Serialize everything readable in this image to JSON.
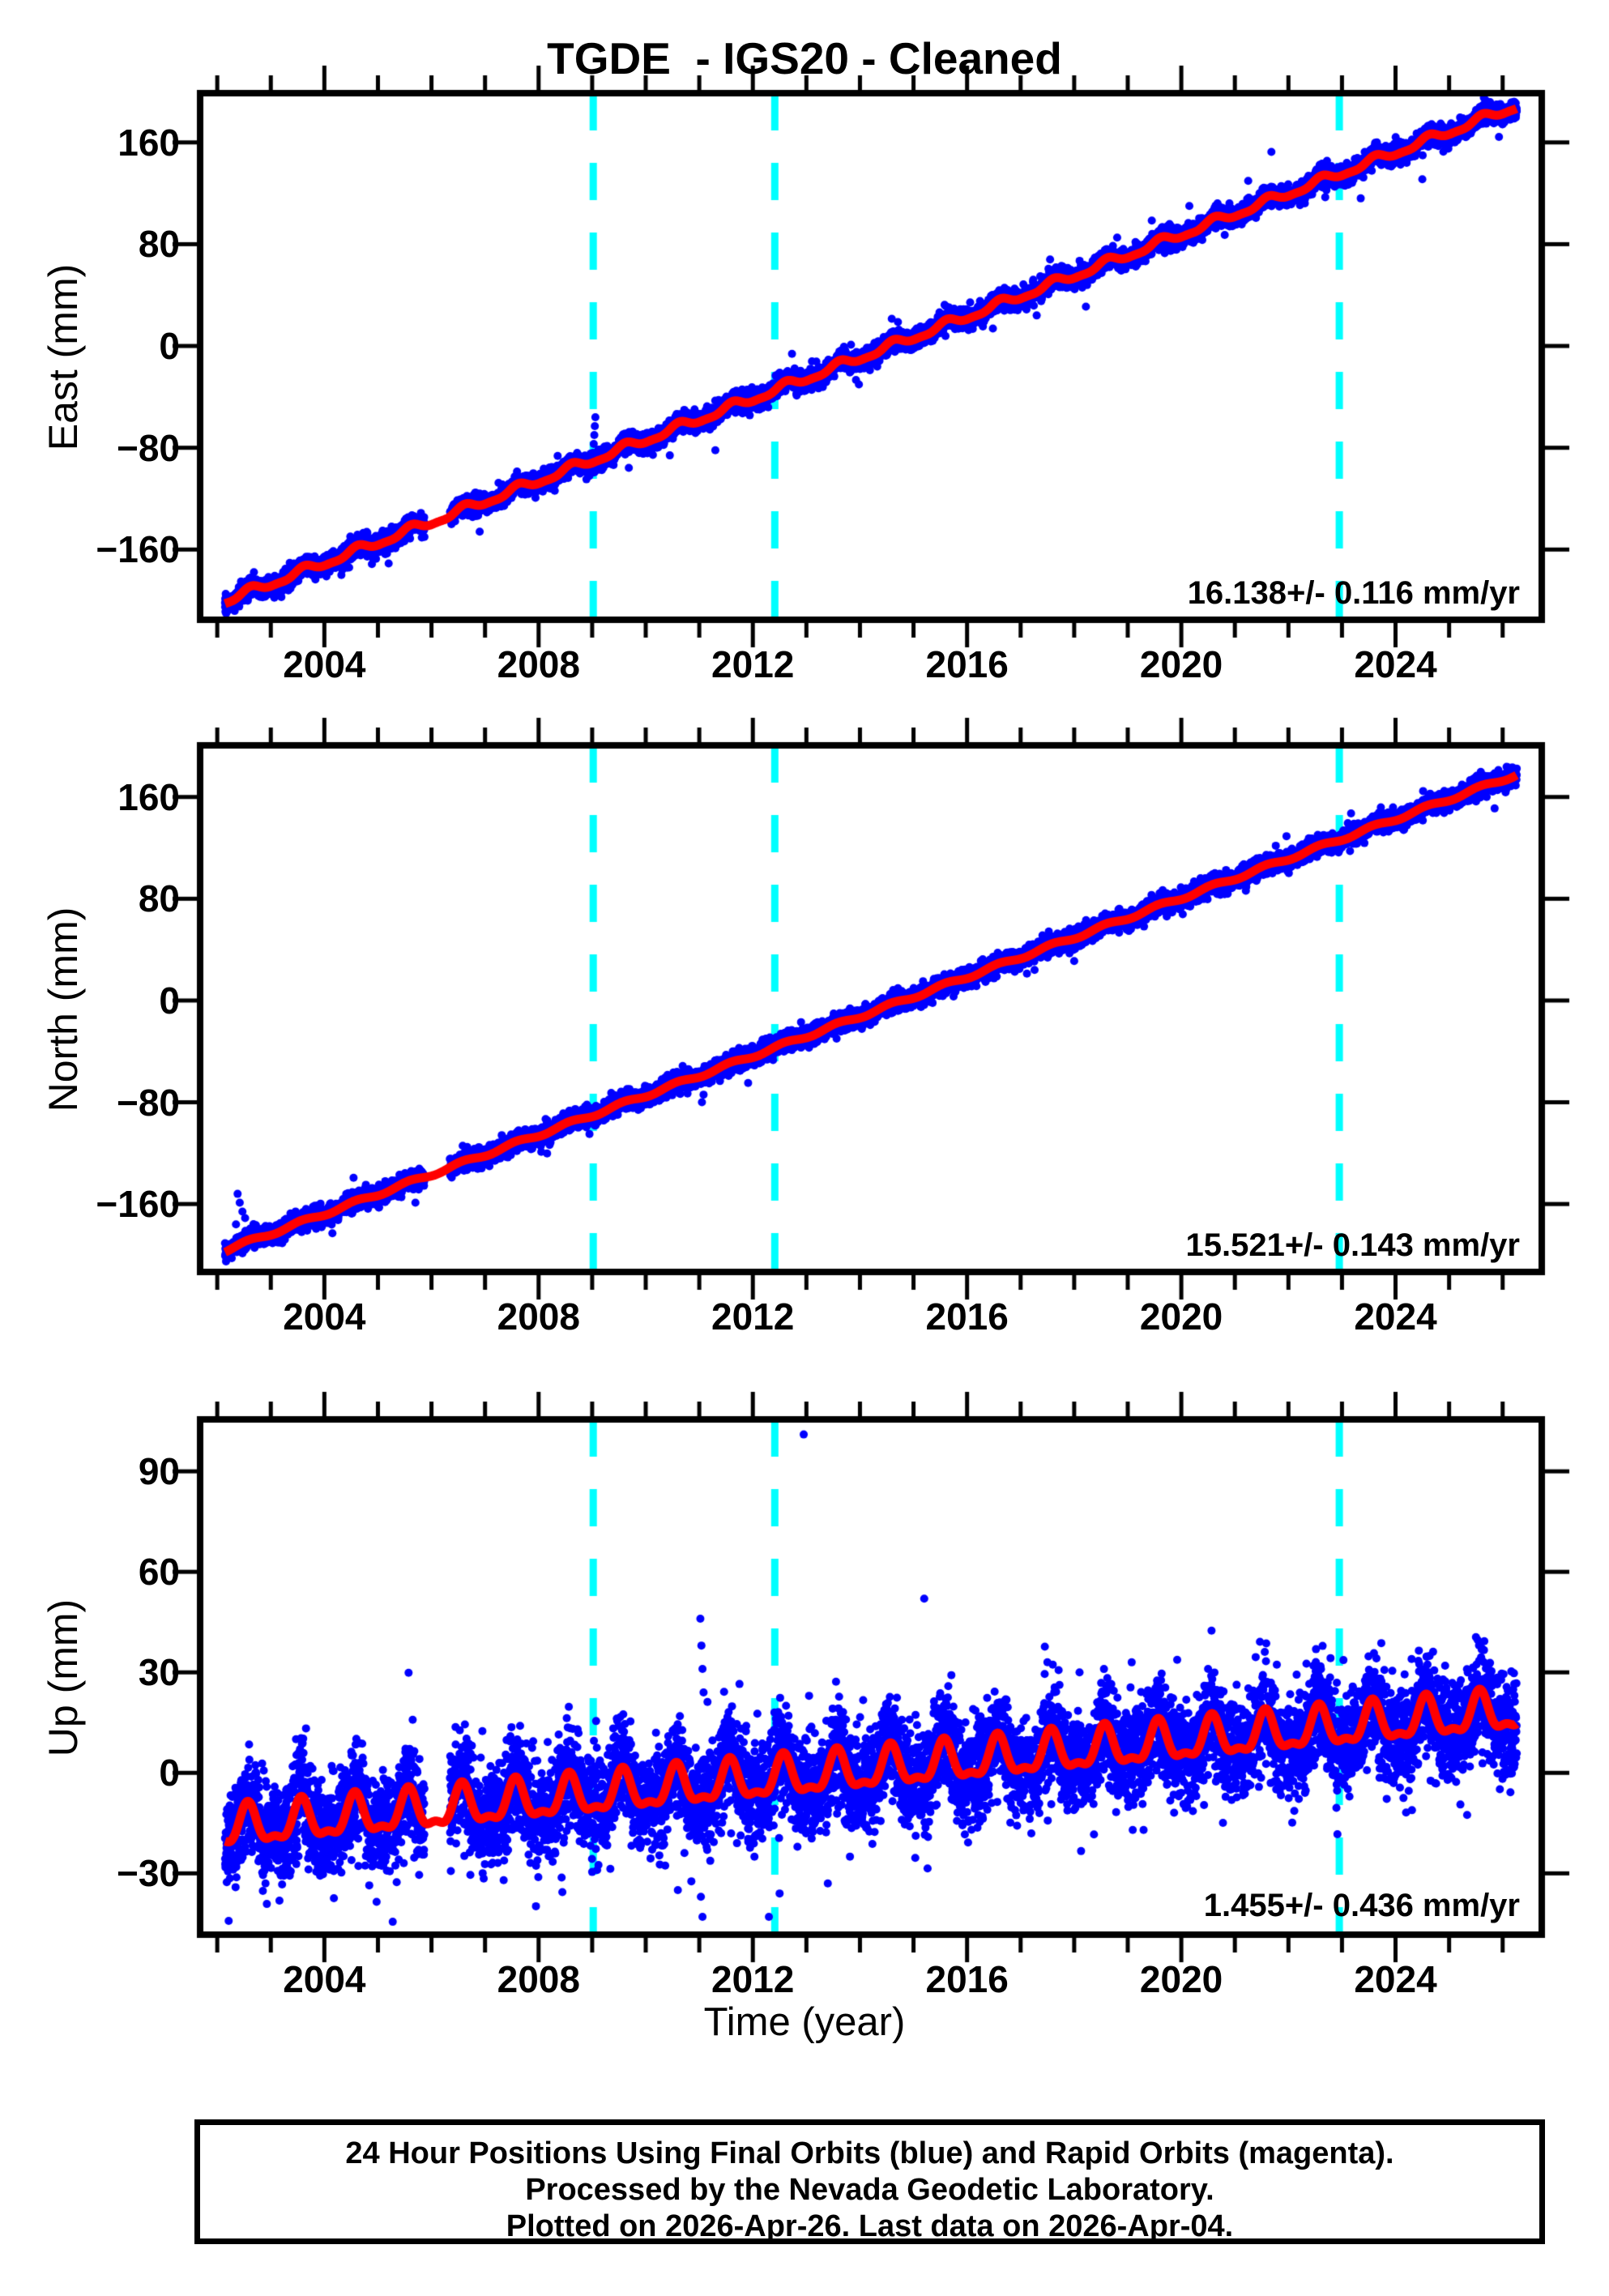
{
  "title": "TGDE  - IGS20 - Cleaned",
  "colors": {
    "point": "#0000ff",
    "model_line": "#ff0000",
    "event_line": "#00ffff",
    "frame": "#000000",
    "background": "#ffffff"
  },
  "xaxis": {
    "title": "Time (year)",
    "range": [
      2001.68,
      2026.73
    ],
    "major_ticks": [
      2004,
      2008,
      2012,
      2016,
      2020,
      2024
    ],
    "minor_tick_start": 2002,
    "minor_tick_end": 2026,
    "minor_tick_step": 1
  },
  "event_lines": {
    "style": "dashed",
    "color": "#00ffff",
    "years": [
      2009.02,
      2012.41,
      2022.95
    ]
  },
  "chart_data": [
    {
      "type": "scatter",
      "name": "east",
      "ylabel": "East (mm)",
      "yrange": [
        -215.2,
        198.7
      ],
      "yticks": [
        {
          "v": 160,
          "label": "160"
        },
        {
          "v": 80,
          "label": "80"
        },
        {
          "v": 0,
          "label": "0"
        },
        {
          "v": -80,
          "label": "−80"
        },
        {
          "v": -160,
          "label": "−160"
        }
      ],
      "rate": 16.138,
      "rate_uncertainty": 0.116,
      "annotation": "16.138+/- 0.116 mm/yr",
      "series": {
        "start": 2002.145,
        "end": 2026.265,
        "per_year": 365,
        "gaps": [
          [
            2005.87,
            2006.34
          ]
        ],
        "base": -200.5,
        "rate": 16.138,
        "seasonal": [
          {
            "period": 1,
            "amp": 3.0,
            "phase": 0.62
          },
          {
            "period": 0.5,
            "amp": 1.0,
            "phase": 0.12
          }
        ],
        "sigma": 3.8,
        "tail_p": 0.006,
        "tail_mult": 3.0,
        "seed": 101
      },
      "outliers": [
        [
          2005.2,
          -171
        ],
        [
          2006.9,
          -146
        ],
        [
          2009.02,
          -90
        ],
        [
          2009.02,
          -84
        ],
        [
          2009.03,
          -77
        ],
        [
          2009.04,
          -70
        ],
        [
          2009.05,
          -63
        ],
        [
          2009.06,
          -56
        ],
        [
          2010.45,
          -86
        ],
        [
          2011.3,
          -82
        ],
        [
          2017.3,
          24
        ],
        [
          2017.55,
          68
        ],
        [
          2020.15,
          110
        ],
        [
          2023.35,
          116
        ],
        [
          2024.5,
          131
        ]
      ]
    },
    {
      "type": "scatter",
      "name": "north",
      "ylabel": "North (mm)",
      "yrange": [
        -213.4,
        200.6
      ],
      "yticks": [
        {
          "v": 160,
          "label": "160"
        },
        {
          "v": 80,
          "label": "80"
        },
        {
          "v": 0,
          "label": "0"
        },
        {
          "v": -80,
          "label": "−80"
        },
        {
          "v": -160,
          "label": "−160"
        }
      ],
      "rate": 15.521,
      "rate_uncertainty": 0.143,
      "annotation": "15.521+/- 0.143 mm/yr",
      "series": {
        "start": 2002.145,
        "end": 2026.265,
        "per_year": 365,
        "gaps": [
          [
            2005.87,
            2006.34
          ]
        ],
        "base": -196.5,
        "rate": 15.521,
        "seasonal": [
          {
            "period": 1,
            "amp": 1.5,
            "phase": 0.58
          }
        ],
        "sigma": 3.6,
        "tail_p": 0.006,
        "tail_mult": 2.6,
        "seed": 202
      },
      "outliers": [
        [
          2002.35,
          -176
        ],
        [
          2002.38,
          -152
        ],
        [
          2002.42,
          -159
        ],
        [
          2002.47,
          -166
        ],
        [
          2002.52,
          -171
        ],
        [
          2004.15,
          -183
        ],
        [
          2005.7,
          -159
        ],
        [
          2008.05,
          -119
        ],
        [
          2008.95,
          -105
        ],
        [
          2010.3,
          -62
        ],
        [
          2011.05,
          -80
        ],
        [
          2011.08,
          -74
        ],
        [
          2012.9,
          -17
        ],
        [
          2018.0,
          31
        ],
        [
          2025.85,
          151
        ]
      ]
    },
    {
      "type": "scatter",
      "name": "up",
      "ylabel": "Up (mm)",
      "yrange": [
        -48.3,
        105.5
      ],
      "yticks": [
        {
          "v": 90,
          "label": "90"
        },
        {
          "v": 60,
          "label": "60"
        },
        {
          "v": 30,
          "label": "30"
        },
        {
          "v": 0,
          "label": "0"
        },
        {
          "v": -30,
          "label": "−30"
        }
      ],
      "rate": 1.455,
      "rate_uncertainty": 0.436,
      "annotation": "1.455+/- 0.436 mm/yr",
      "series": {
        "start": 2002.145,
        "end": 2026.265,
        "per_year": 365,
        "gaps": [
          [
            2005.87,
            2006.34
          ]
        ],
        "base": -16.8,
        "rate": 1.455,
        "seasonal": [
          {
            "period": 1,
            "amp": 5.5,
            "phase": 0.57
          },
          {
            "period": 0.5,
            "amp": 2.2,
            "phase": 0.57
          }
        ],
        "sigma": 7.2,
        "tail_p": 0.012,
        "tail_mult": 2.2,
        "seed": 303
      },
      "outliers": [
        [
          2012.95,
          101
        ],
        [
          2015.2,
          52
        ],
        [
          2011.02,
          46
        ],
        [
          2011.04,
          38
        ],
        [
          2011.06,
          31
        ],
        [
          2011.08,
          24
        ],
        [
          2011.03,
          -37
        ],
        [
          2011.06,
          -43
        ],
        [
          2011.1,
          -49
        ],
        [
          2012.3,
          -43
        ],
        [
          2012.45,
          -49
        ],
        [
          2012.5,
          -36
        ],
        [
          2012.62,
          20
        ],
        [
          2013.05,
          23
        ],
        [
          2013.4,
          -33
        ],
        [
          2010.6,
          -35
        ],
        [
          2017.5,
          33
        ],
        [
          2018.1,
          30
        ],
        [
          2020.5,
          31
        ],
        [
          2024.3,
          34
        ],
        [
          2025.65,
          33
        ]
      ]
    }
  ],
  "footer": {
    "lines": [
      "24 Hour Positions Using Final Orbits (blue) and Rapid Orbits (magenta).",
      "Processed by the Nevada Geodetic Laboratory.",
      "Plotted on 2026-Apr-26. Last data on 2026-Apr-04."
    ]
  }
}
